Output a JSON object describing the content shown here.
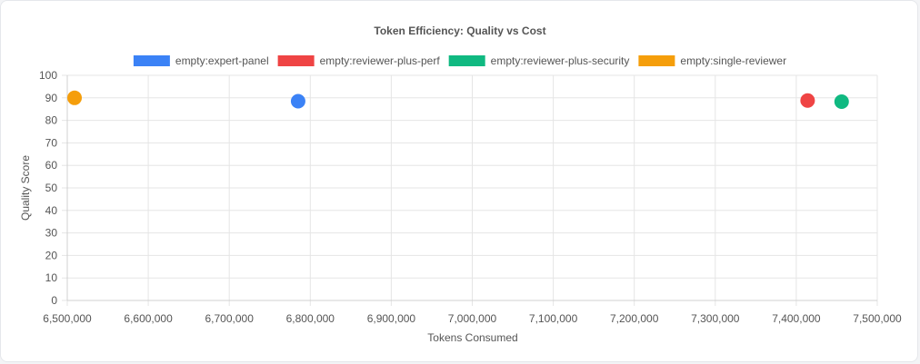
{
  "chart_data": {
    "type": "scatter",
    "title": "Token Efficiency: Quality vs Cost",
    "xlabel": "Tokens Consumed",
    "ylabel": "Quality Score",
    "xlim": [
      6500000,
      7500000
    ],
    "ylim": [
      0,
      100
    ],
    "x_ticks": [
      6500000,
      6600000,
      6700000,
      6800000,
      6900000,
      7000000,
      7100000,
      7200000,
      7300000,
      7400000,
      7500000
    ],
    "x_tick_labels": [
      "6,500,000",
      "6,600,000",
      "6,700,000",
      "6,800,000",
      "6,900,000",
      "7,000,000",
      "7,100,000",
      "7,200,000",
      "7,300,000",
      "7,400,000",
      "7,500,000"
    ],
    "y_ticks": [
      0,
      10,
      20,
      30,
      40,
      50,
      60,
      70,
      80,
      90,
      100
    ],
    "y_tick_labels": [
      "0",
      "10",
      "20",
      "30",
      "40",
      "50",
      "60",
      "70",
      "80",
      "90",
      "100"
    ],
    "grid": true,
    "legend_position": "top",
    "series": [
      {
        "name": "empty:expert-panel",
        "color": "#3b82f6",
        "points": [
          {
            "x": 6785000,
            "y": 88.5
          }
        ]
      },
      {
        "name": "empty:reviewer-plus-perf",
        "color": "#ef4444",
        "points": [
          {
            "x": 7414000,
            "y": 88.8
          }
        ]
      },
      {
        "name": "empty:reviewer-plus-security",
        "color": "#10b981",
        "points": [
          {
            "x": 7456000,
            "y": 88.3
          }
        ]
      },
      {
        "name": "empty:single-reviewer",
        "color": "#f59e0b",
        "points": [
          {
            "x": 6509000,
            "y": 90.0
          }
        ]
      }
    ]
  }
}
